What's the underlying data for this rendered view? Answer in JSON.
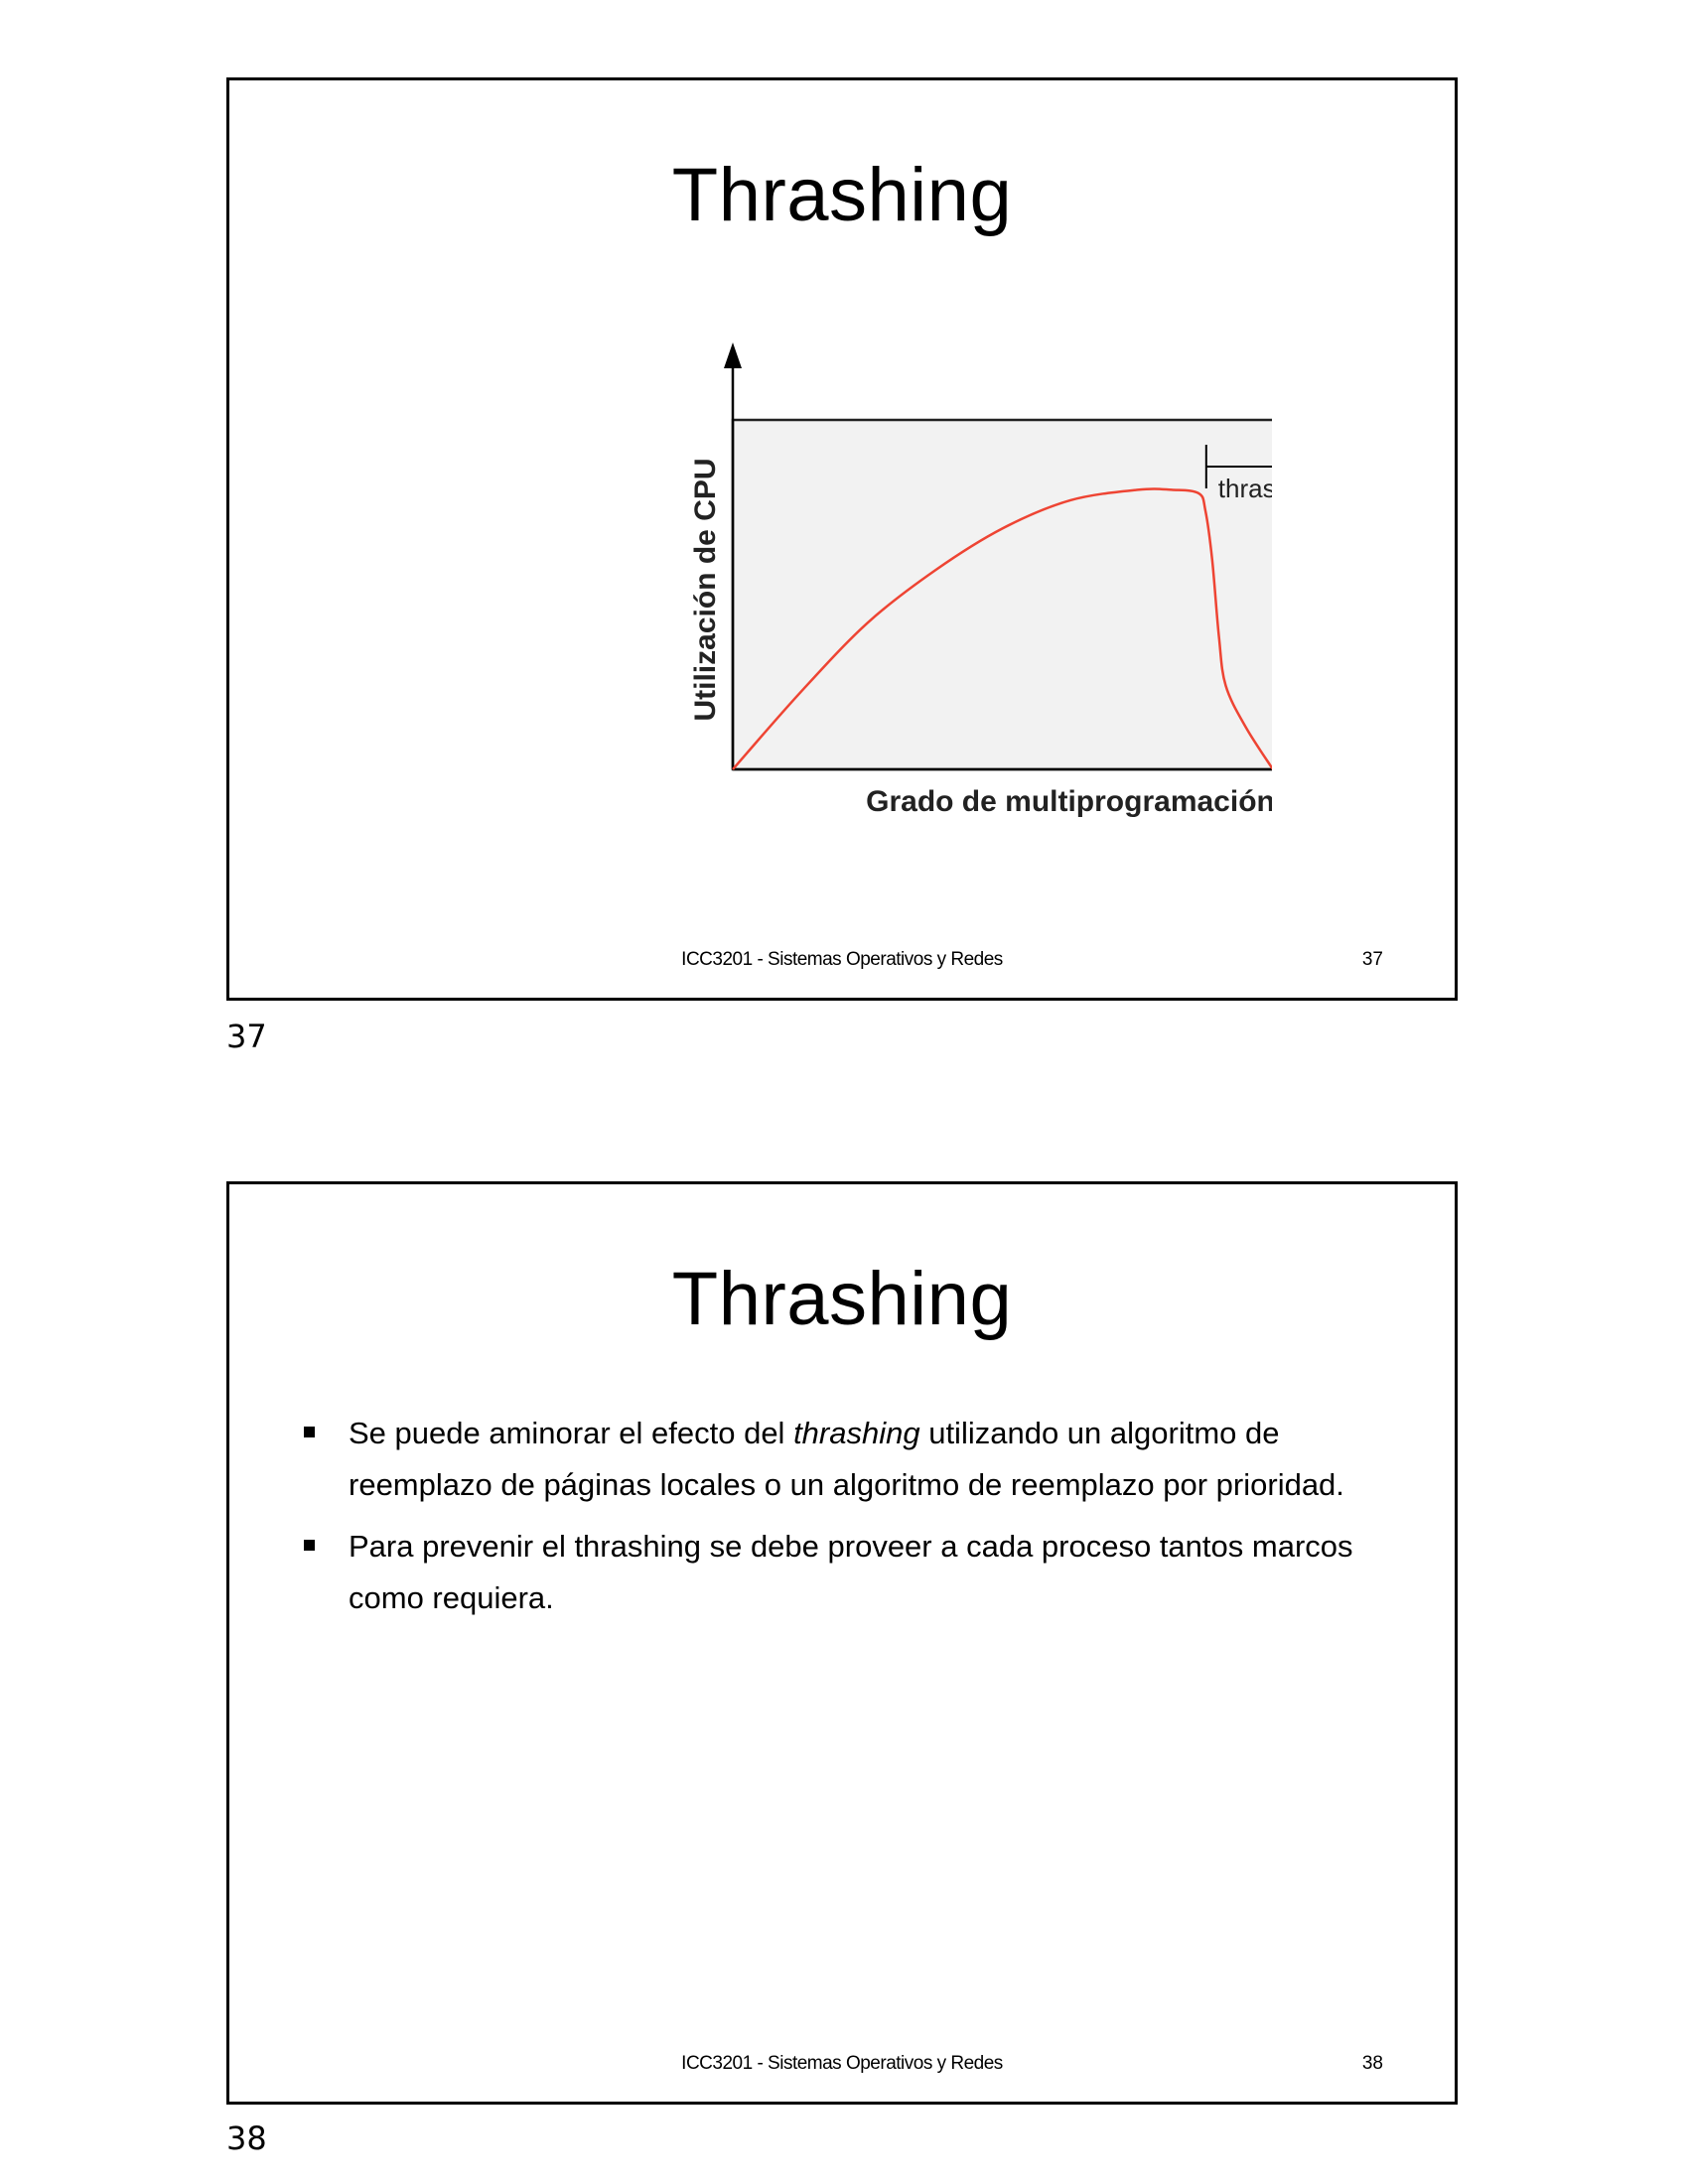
{
  "slides": [
    {
      "title": "Thrashing",
      "footer_course": "ICC3201 - Sistemas Operativos y Redes",
      "footer_number": "37",
      "page_number": "37",
      "chart_data": {
        "type": "line",
        "title": "",
        "xlabel": "Grado de multiprogramación",
        "ylabel": "Utilización de CPU",
        "annotation": "thrashing",
        "grid": false,
        "legend": "none",
        "background_color": "#f2f2f2",
        "curve_color": "#ee4433",
        "xlim": [
          0,
          100
        ],
        "ylim": [
          0,
          100
        ],
        "series": [
          {
            "x": [
              0,
              10,
              20,
              30,
              40,
              50,
              60,
              65,
              69,
              70,
              71,
              72,
              73,
              76,
              80
            ],
            "values": [
              0,
              22,
              42,
              57,
              69,
              77,
              80,
              80,
              79,
              74,
              60,
              38,
              24,
              12,
              0
            ]
          }
        ],
        "thrashing_region_start_x": 71
      }
    },
    {
      "title": "Thrashing",
      "bullets": [
        {
          "before": "Se puede aminorar el efecto del ",
          "emphasis": "thrashing",
          "after": " utilizando un algoritmo de reemplazo de páginas locales o un algoritmo de reemplazo por prioridad."
        },
        {
          "text": "Para prevenir el thrashing se debe proveer a cada proceso tantos marcos como requiera."
        }
      ],
      "footer_course": "ICC3201 - Sistemas Operativos y Redes",
      "footer_number": "38",
      "page_number": "38"
    }
  ]
}
